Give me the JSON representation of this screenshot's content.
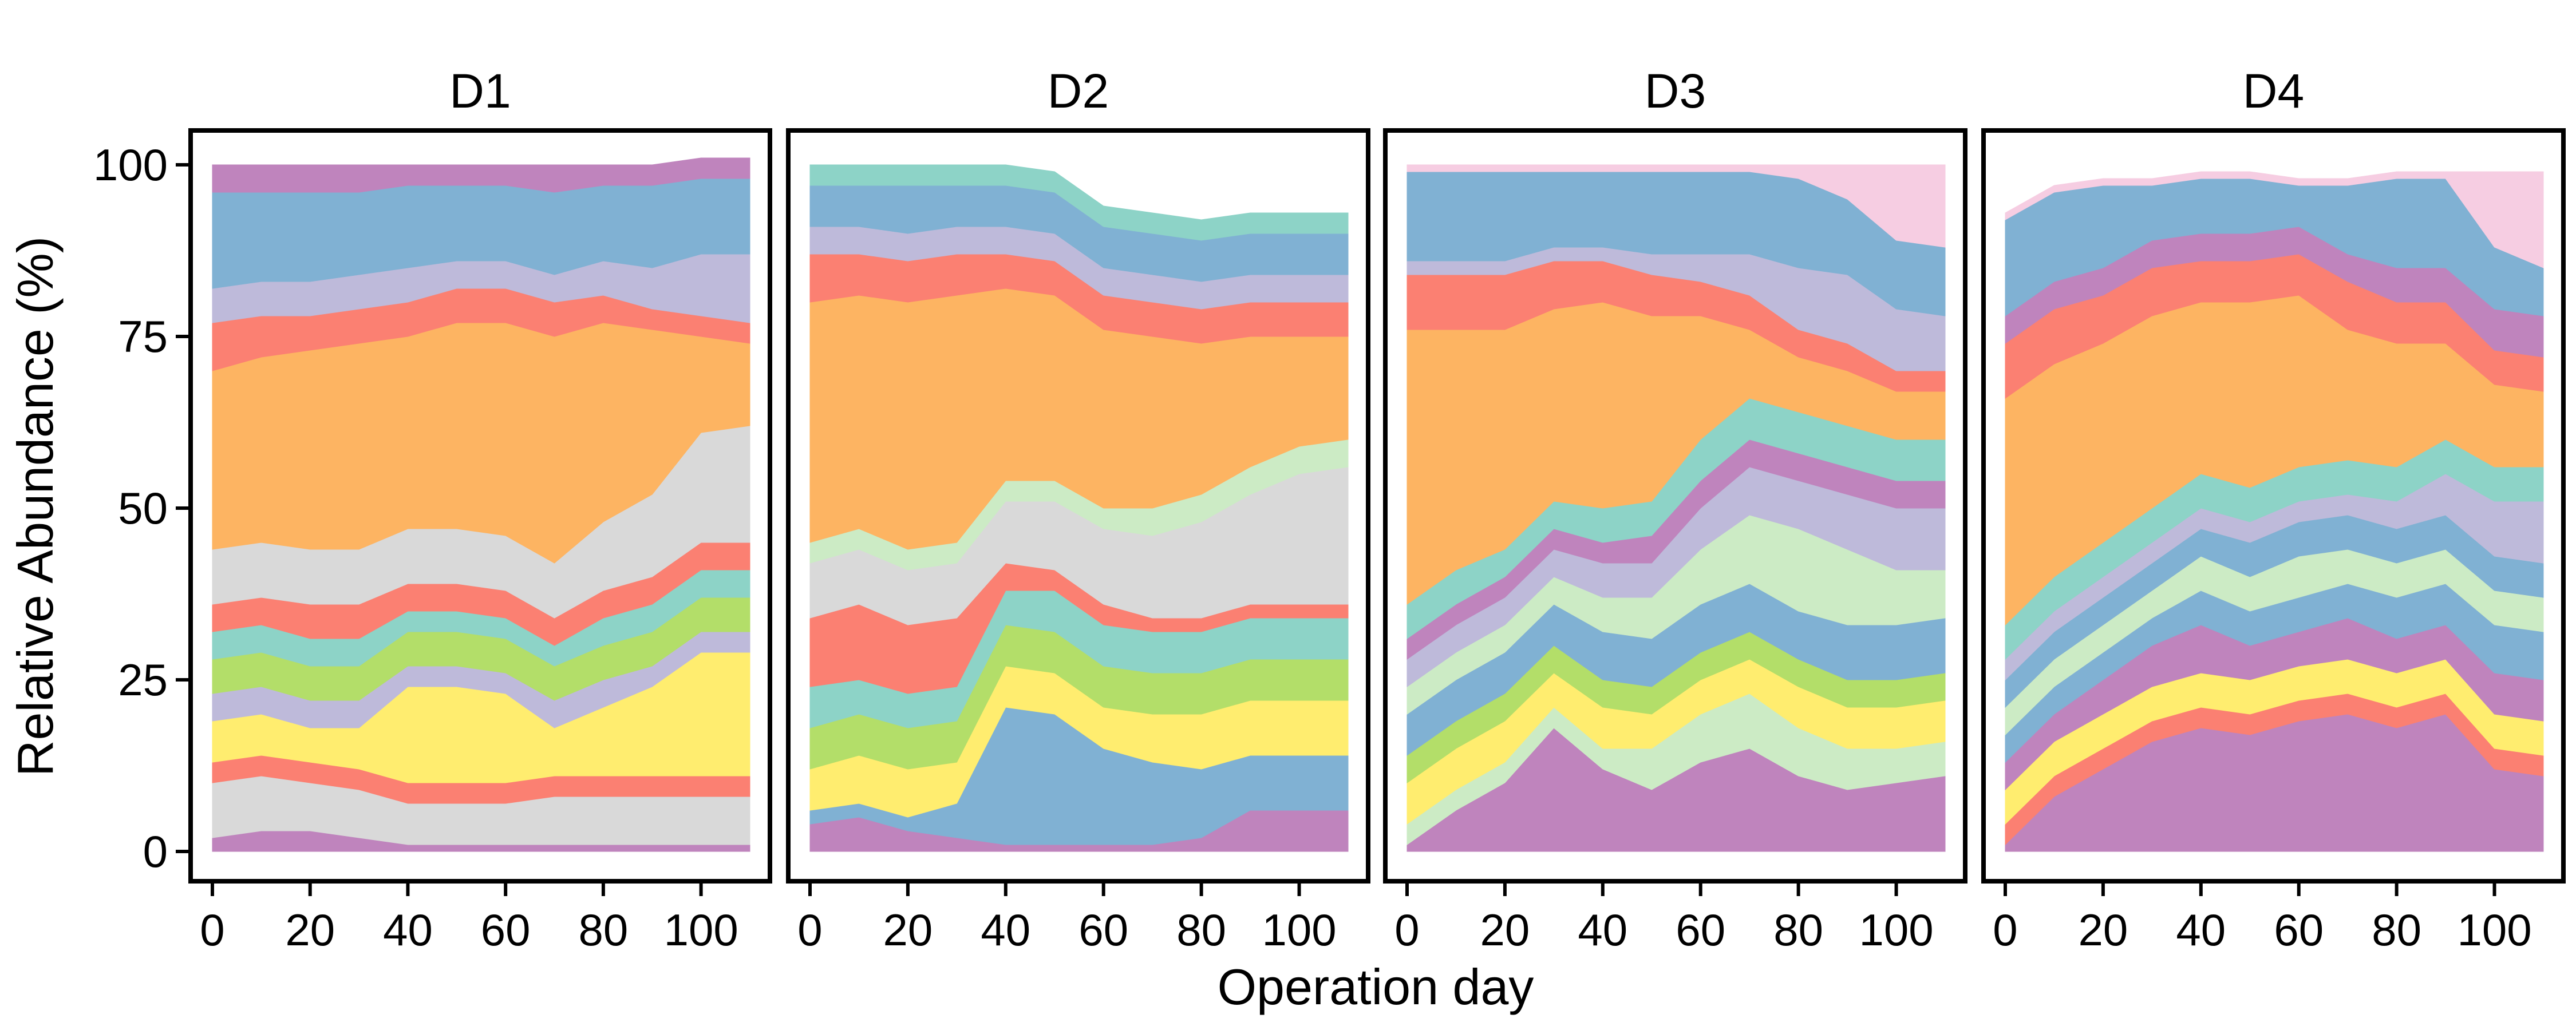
{
  "figure": {
    "xlabel": "Operation day",
    "ylabel": "Relative Abundance (%)"
  },
  "palette": [
    "#bf84bd",
    "#f6cde2",
    "#fdb462",
    "#80b1d3",
    "#fb8072",
    "#ffed6f",
    "#b3de69",
    "#bebada",
    "#8dd3c7",
    "#ccebc5",
    "#d9d9d9",
    "#ffffb3"
  ],
  "chart_data": [
    {
      "type": "area",
      "panel": "D1",
      "stacked": true,
      "xlim": [
        0,
        110
      ],
      "ylim": [
        0,
        100
      ],
      "xticks": [
        0,
        20,
        40,
        60,
        80,
        100
      ],
      "yticks": [
        0,
        25,
        50,
        75,
        100
      ],
      "x": [
        0,
        10,
        20,
        30,
        40,
        50,
        60,
        70,
        80,
        90,
        100,
        110
      ],
      "series": [
        {
          "color": "#bf84bd",
          "values": [
            2,
            3,
            3,
            2,
            1,
            1,
            1,
            1,
            1,
            1,
            1,
            1
          ]
        },
        {
          "color": "#d9d9d9",
          "values": [
            8,
            8,
            7,
            7,
            6,
            6,
            6,
            7,
            7,
            7,
            7,
            7
          ]
        },
        {
          "color": "#fb8072",
          "values": [
            3,
            3,
            3,
            3,
            3,
            3,
            3,
            3,
            3,
            3,
            3,
            3
          ]
        },
        {
          "color": "#ffed6f",
          "values": [
            6,
            6,
            5,
            6,
            14,
            14,
            13,
            7,
            10,
            13,
            18,
            18
          ]
        },
        {
          "color": "#bebada",
          "values": [
            4,
            4,
            4,
            4,
            3,
            3,
            3,
            4,
            4,
            3,
            3,
            3
          ]
        },
        {
          "color": "#b3de69",
          "values": [
            5,
            5,
            5,
            5,
            5,
            5,
            5,
            5,
            5,
            5,
            5,
            5
          ]
        },
        {
          "color": "#8dd3c7",
          "values": [
            4,
            4,
            4,
            4,
            3,
            3,
            3,
            3,
            4,
            4,
            4,
            4
          ]
        },
        {
          "color": "#fb8072",
          "values": [
            4,
            4,
            5,
            5,
            4,
            4,
            4,
            4,
            4,
            4,
            4,
            4
          ]
        },
        {
          "color": "#d9d9d9",
          "values": [
            8,
            8,
            8,
            8,
            8,
            8,
            8,
            8,
            10,
            12,
            16,
            17
          ]
        },
        {
          "color": "#fdb462",
          "values": [
            26,
            27,
            29,
            30,
            28,
            30,
            31,
            33,
            29,
            24,
            14,
            12
          ]
        },
        {
          "color": "#fb8072",
          "values": [
            7,
            6,
            5,
            5,
            5,
            5,
            5,
            5,
            4,
            3,
            3,
            3
          ]
        },
        {
          "color": "#bebada",
          "values": [
            5,
            5,
            5,
            5,
            5,
            4,
            4,
            4,
            5,
            6,
            9,
            10
          ]
        },
        {
          "color": "#80b1d3",
          "values": [
            14,
            13,
            13,
            12,
            12,
            11,
            11,
            12,
            11,
            12,
            11,
            11
          ]
        },
        {
          "color": "#bf84bd",
          "values": [
            4,
            4,
            4,
            4,
            3,
            3,
            3,
            4,
            3,
            3,
            3,
            3
          ]
        }
      ]
    },
    {
      "type": "area",
      "panel": "D2",
      "stacked": true,
      "xlim": [
        0,
        110
      ],
      "ylim": [
        0,
        100
      ],
      "xticks": [
        0,
        20,
        40,
        60,
        80,
        100
      ],
      "yticks": [
        0,
        25,
        50,
        75,
        100
      ],
      "x": [
        0,
        10,
        20,
        30,
        40,
        50,
        60,
        70,
        80,
        90,
        100,
        110
      ],
      "series": [
        {
          "color": "#bf84bd",
          "values": [
            4,
            5,
            3,
            2,
            1,
            1,
            1,
            1,
            2,
            6,
            6,
            6
          ]
        },
        {
          "color": "#80b1d3",
          "values": [
            2,
            2,
            2,
            5,
            20,
            19,
            14,
            12,
            10,
            8,
            8,
            8
          ]
        },
        {
          "color": "#ffed6f",
          "values": [
            6,
            7,
            7,
            6,
            6,
            6,
            6,
            7,
            8,
            8,
            8,
            8
          ]
        },
        {
          "color": "#b3de69",
          "values": [
            6,
            6,
            6,
            6,
            6,
            6,
            6,
            6,
            6,
            6,
            6,
            6
          ]
        },
        {
          "color": "#8dd3c7",
          "values": [
            6,
            5,
            5,
            5,
            5,
            6,
            6,
            6,
            6,
            6,
            6,
            6
          ]
        },
        {
          "color": "#fb8072",
          "values": [
            10,
            11,
            10,
            10,
            4,
            3,
            3,
            2,
            2,
            2,
            2,
            2
          ]
        },
        {
          "color": "#d9d9d9",
          "values": [
            8,
            8,
            8,
            8,
            9,
            10,
            11,
            12,
            14,
            16,
            19,
            20
          ]
        },
        {
          "color": "#ccebc5",
          "values": [
            3,
            3,
            3,
            3,
            3,
            3,
            3,
            4,
            4,
            4,
            4,
            4
          ]
        },
        {
          "color": "#fdb462",
          "values": [
            35,
            34,
            36,
            36,
            28,
            27,
            26,
            25,
            22,
            19,
            16,
            15
          ]
        },
        {
          "color": "#fb8072",
          "values": [
            7,
            6,
            6,
            6,
            5,
            5,
            5,
            5,
            5,
            5,
            5,
            5
          ]
        },
        {
          "color": "#bebada",
          "values": [
            4,
            4,
            4,
            4,
            4,
            4,
            4,
            4,
            4,
            4,
            4,
            4
          ]
        },
        {
          "color": "#80b1d3",
          "values": [
            6,
            6,
            7,
            6,
            6,
            6,
            6,
            6,
            6,
            6,
            6,
            6
          ]
        },
        {
          "color": "#8dd3c7",
          "values": [
            3,
            3,
            3,
            3,
            3,
            3,
            3,
            3,
            3,
            3,
            3,
            3
          ]
        }
      ]
    },
    {
      "type": "area",
      "panel": "D3",
      "stacked": true,
      "xlim": [
        0,
        110
      ],
      "ylim": [
        0,
        100
      ],
      "xticks": [
        0,
        20,
        40,
        60,
        80,
        100
      ],
      "yticks": [
        0,
        25,
        50,
        75,
        100
      ],
      "x": [
        0,
        10,
        20,
        30,
        40,
        50,
        60,
        70,
        80,
        90,
        100,
        110
      ],
      "series": [
        {
          "color": "#bf84bd",
          "values": [
            1,
            6,
            10,
            18,
            12,
            9,
            13,
            15,
            11,
            9,
            10,
            11
          ]
        },
        {
          "color": "#ccebc5",
          "values": [
            3,
            3,
            3,
            3,
            3,
            6,
            7,
            8,
            7,
            6,
            5,
            5
          ]
        },
        {
          "color": "#ffed6f",
          "values": [
            6,
            6,
            6,
            5,
            6,
            5,
            5,
            5,
            6,
            6,
            6,
            6
          ]
        },
        {
          "color": "#b3de69",
          "values": [
            4,
            4,
            4,
            4,
            4,
            4,
            4,
            4,
            4,
            4,
            4,
            4
          ]
        },
        {
          "color": "#80b1d3",
          "values": [
            6,
            6,
            6,
            6,
            7,
            7,
            7,
            7,
            7,
            8,
            8,
            8
          ]
        },
        {
          "color": "#ccebc5",
          "values": [
            4,
            4,
            4,
            4,
            5,
            6,
            8,
            10,
            12,
            11,
            8,
            7
          ]
        },
        {
          "color": "#bebada",
          "values": [
            4,
            4,
            4,
            4,
            5,
            5,
            6,
            7,
            7,
            8,
            9,
            9
          ]
        },
        {
          "color": "#bf84bd",
          "values": [
            3,
            3,
            3,
            3,
            3,
            4,
            4,
            4,
            4,
            4,
            4,
            4
          ]
        },
        {
          "color": "#8dd3c7",
          "values": [
            5,
            5,
            4,
            4,
            5,
            5,
            6,
            6,
            6,
            6,
            6,
            6
          ]
        },
        {
          "color": "#fdb462",
          "values": [
            40,
            35,
            32,
            28,
            30,
            27,
            18,
            10,
            8,
            8,
            7,
            7
          ]
        },
        {
          "color": "#fb8072",
          "values": [
            8,
            8,
            8,
            7,
            6,
            6,
            5,
            5,
            4,
            4,
            3,
            3
          ]
        },
        {
          "color": "#bebada",
          "values": [
            2,
            2,
            2,
            2,
            2,
            3,
            4,
            6,
            9,
            10,
            9,
            8
          ]
        },
        {
          "color": "#80b1d3",
          "values": [
            13,
            13,
            13,
            11,
            11,
            12,
            12,
            12,
            13,
            11,
            10,
            10
          ]
        },
        {
          "color": "#f6cde2",
          "values": [
            1,
            1,
            1,
            1,
            1,
            1,
            1,
            1,
            2,
            5,
            11,
            12
          ]
        }
      ]
    },
    {
      "type": "area",
      "panel": "D4",
      "stacked": true,
      "xlim": [
        0,
        110
      ],
      "ylim": [
        0,
        100
      ],
      "xticks": [
        0,
        20,
        40,
        60,
        80,
        100
      ],
      "yticks": [
        0,
        25,
        50,
        75,
        100
      ],
      "x": [
        0,
        10,
        20,
        30,
        40,
        50,
        60,
        70,
        80,
        90,
        100,
        110
      ],
      "series": [
        {
          "color": "#bf84bd",
          "values": [
            1,
            8,
            12,
            16,
            18,
            17,
            19,
            20,
            18,
            20,
            12,
            11
          ]
        },
        {
          "color": "#fb8072",
          "values": [
            3,
            3,
            3,
            3,
            3,
            3,
            3,
            3,
            3,
            3,
            3,
            3
          ]
        },
        {
          "color": "#ffed6f",
          "values": [
            5,
            5,
            5,
            5,
            5,
            5,
            5,
            5,
            5,
            5,
            5,
            5
          ]
        },
        {
          "color": "#bf84bd",
          "values": [
            4,
            4,
            5,
            6,
            7,
            5,
            5,
            6,
            5,
            5,
            6,
            6
          ]
        },
        {
          "color": "#80b1d3",
          "values": [
            4,
            4,
            4,
            4,
            5,
            5,
            5,
            5,
            6,
            6,
            7,
            7
          ]
        },
        {
          "color": "#ccebc5",
          "values": [
            4,
            4,
            4,
            4,
            5,
            5,
            6,
            5,
            5,
            5,
            5,
            5
          ]
        },
        {
          "color": "#80b1d3",
          "values": [
            4,
            4,
            4,
            4,
            4,
            5,
            5,
            5,
            5,
            5,
            5,
            5
          ]
        },
        {
          "color": "#bebada",
          "values": [
            3,
            3,
            3,
            3,
            3,
            3,
            3,
            3,
            4,
            6,
            8,
            9
          ]
        },
        {
          "color": "#8dd3c7",
          "values": [
            5,
            5,
            5,
            5,
            5,
            5,
            5,
            5,
            5,
            5,
            5,
            5
          ]
        },
        {
          "color": "#fdb462",
          "values": [
            33,
            31,
            29,
            28,
            25,
            27,
            25,
            19,
            18,
            14,
            12,
            11
          ]
        },
        {
          "color": "#fb8072",
          "values": [
            8,
            8,
            7,
            7,
            6,
            6,
            6,
            7,
            6,
            6,
            5,
            5
          ]
        },
        {
          "color": "#bf84bd",
          "values": [
            4,
            4,
            4,
            4,
            4,
            4,
            4,
            4,
            5,
            5,
            6,
            6
          ]
        },
        {
          "color": "#80b1d3",
          "values": [
            14,
            13,
            12,
            8,
            8,
            8,
            6,
            10,
            13,
            13,
            9,
            7
          ]
        },
        {
          "color": "#f6cde2",
          "values": [
            1,
            1,
            1,
            1,
            1,
            1,
            1,
            1,
            1,
            1,
            11,
            14
          ]
        }
      ]
    }
  ]
}
